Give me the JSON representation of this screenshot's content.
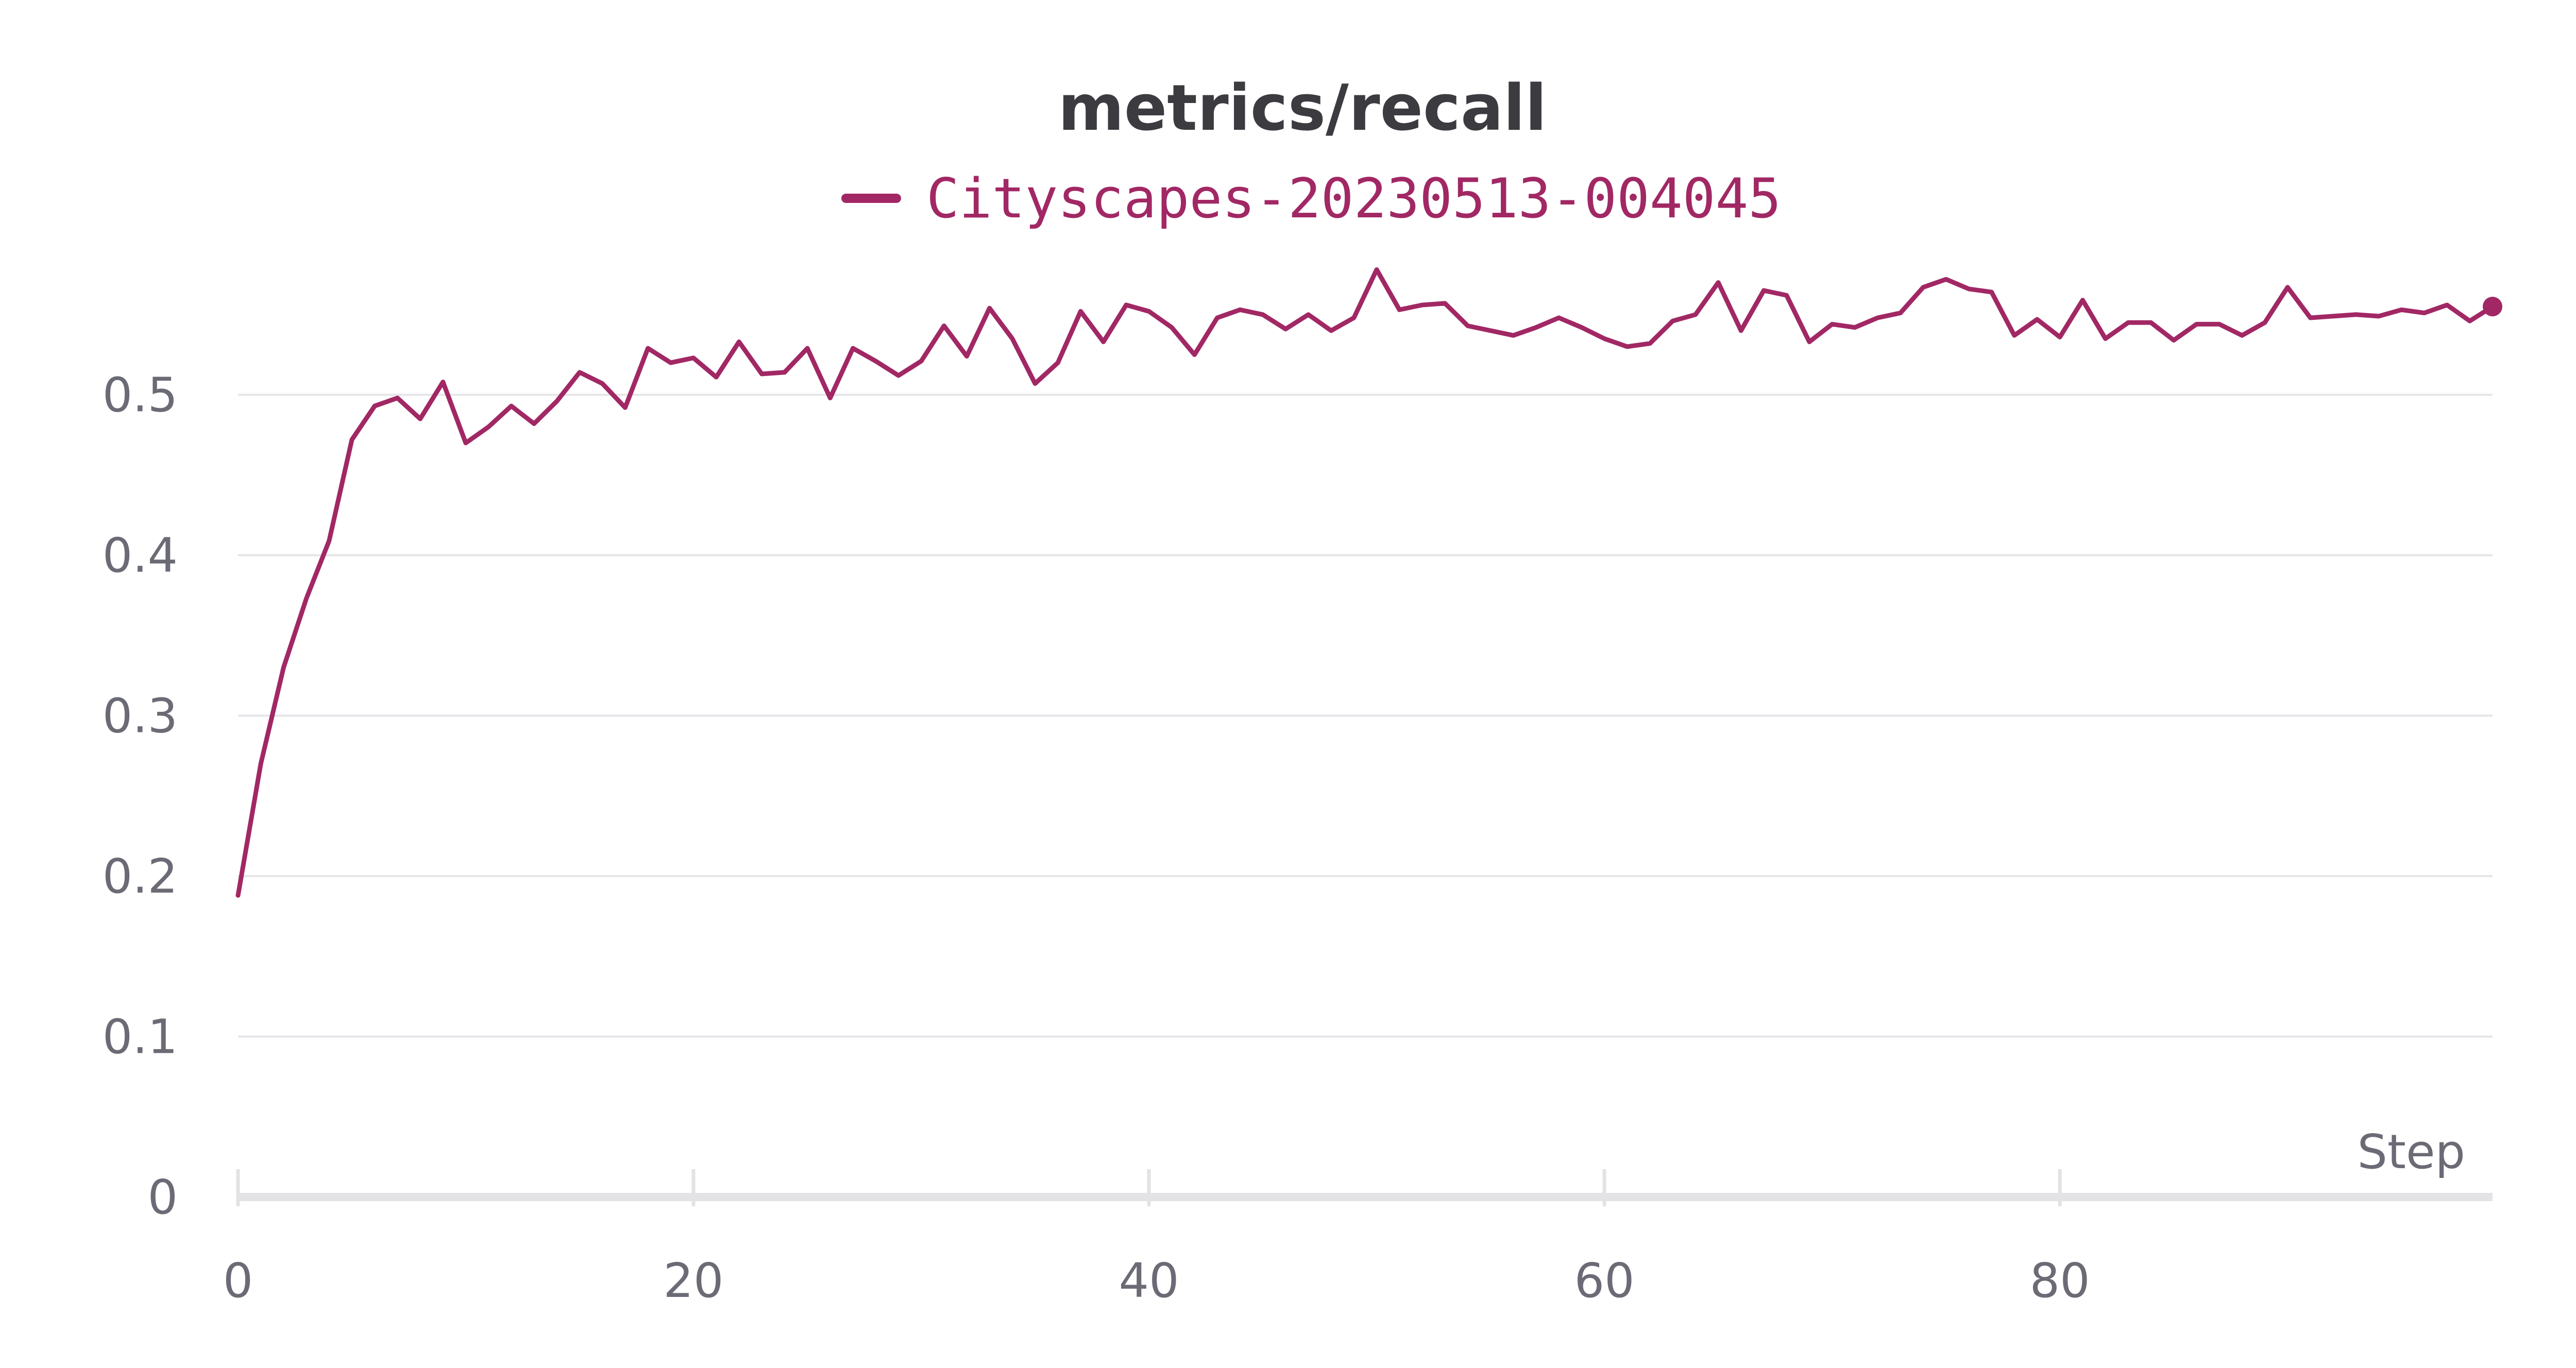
{
  "chart_data": {
    "type": "line",
    "title": "metrics/recall",
    "xlabel": "Step",
    "ylabel": "",
    "xlim": [
      0,
      99
    ],
    "ylim": [
      0,
      0.58
    ],
    "xticks": [
      0,
      20,
      40,
      60,
      80
    ],
    "yticks": [
      0,
      0.1,
      0.2,
      0.3,
      0.4,
      0.5
    ],
    "xtick_labels": [
      "0",
      "20",
      "40",
      "60",
      "80"
    ],
    "ytick_labels": [
      "0",
      "0.1",
      "0.2",
      "0.3",
      "0.4",
      "0.5"
    ],
    "grid": "horizontal",
    "legend": "top-center",
    "series": [
      {
        "name": "Cityscapes-20230513-004045",
        "color": "#a12864",
        "x": [
          0,
          1,
          2,
          3,
          4,
          5,
          6,
          7,
          8,
          9,
          10,
          11,
          12,
          13,
          14,
          15,
          16,
          17,
          18,
          19,
          20,
          21,
          22,
          23,
          24,
          25,
          26,
          27,
          28,
          29,
          30,
          31,
          32,
          33,
          34,
          35,
          36,
          37,
          38,
          39,
          40,
          41,
          42,
          43,
          44,
          45,
          46,
          47,
          48,
          49,
          50,
          51,
          52,
          53,
          54,
          55,
          56,
          57,
          58,
          59,
          60,
          61,
          62,
          63,
          64,
          65,
          66,
          67,
          68,
          69,
          70,
          71,
          72,
          73,
          74,
          75,
          76,
          77,
          78,
          79,
          80,
          81,
          82,
          83,
          84,
          85,
          86,
          87,
          88,
          89,
          90,
          91,
          92,
          93,
          94,
          95,
          96,
          97,
          98,
          99
        ],
        "values": [
          0.188,
          0.27,
          0.33,
          0.373,
          0.409,
          0.472,
          0.493,
          0.498,
          0.485,
          0.508,
          0.47,
          0.48,
          0.493,
          0.482,
          0.496,
          0.514,
          0.507,
          0.492,
          0.529,
          0.52,
          0.523,
          0.511,
          0.533,
          0.513,
          0.514,
          0.529,
          0.498,
          0.529,
          0.521,
          0.512,
          0.521,
          0.543,
          0.524,
          0.554,
          0.535,
          0.507,
          0.52,
          0.552,
          0.533,
          0.556,
          0.552,
          0.542,
          0.525,
          0.548,
          0.553,
          0.55,
          0.541,
          0.55,
          0.54,
          0.548,
          0.578,
          0.553,
          0.556,
          0.557,
          0.543,
          0.54,
          0.537,
          0.542,
          0.548,
          0.542,
          0.535,
          0.53,
          0.532,
          0.546,
          0.55,
          0.57,
          0.54,
          0.565,
          0.562,
          0.533,
          0.544,
          0.542,
          0.548,
          0.551,
          0.567,
          0.572,
          0.566,
          0.564,
          0.537,
          0.547,
          0.536,
          0.559,
          0.535,
          0.545,
          0.545,
          0.534,
          0.544,
          0.544,
          0.537,
          0.545,
          0.567,
          0.548,
          0.549,
          0.55,
          0.549,
          0.553,
          0.551,
          0.556,
          0.546,
          0.555
        ]
      }
    ]
  }
}
